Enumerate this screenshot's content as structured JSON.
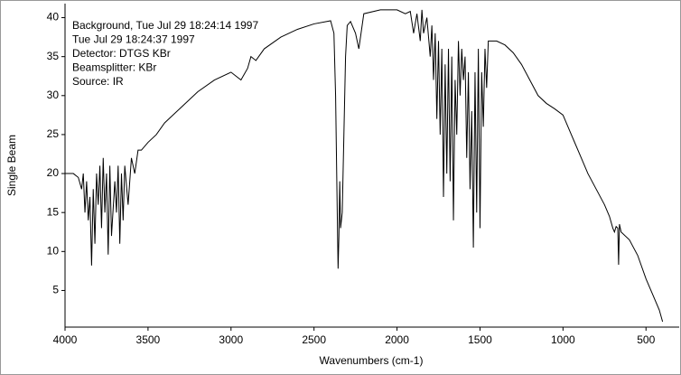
{
  "chart_data": {
    "type": "line",
    "annotations": [
      "Background, Tue Jul 29 18:24:14 1997",
      "Tue Jul 29 18:24:37 1997",
      "Detector:  DTGS KBr",
      "Beamsplitter:  KBr",
      "Source:  IR"
    ],
    "x_label": "Wavenumbers (cm-1)",
    "y_label": "Single Beam",
    "x": [
      4000,
      3950,
      3920,
      3900,
      3890,
      3880,
      3870,
      3860,
      3850,
      3840,
      3830,
      3820,
      3810,
      3800,
      3790,
      3780,
      3770,
      3760,
      3750,
      3740,
      3730,
      3720,
      3700,
      3690,
      3680,
      3670,
      3660,
      3650,
      3640,
      3620,
      3600,
      3580,
      3560,
      3540,
      3500,
      3450,
      3400,
      3300,
      3200,
      3100,
      3000,
      2970,
      2940,
      2900,
      2880,
      2850,
      2800,
      2700,
      2600,
      2500,
      2400,
      2380,
      2370,
      2360,
      2355,
      2350,
      2345,
      2340,
      2330,
      2320,
      2310,
      2300,
      2280,
      2250,
      2230,
      2200,
      2100,
      2000,
      1950,
      1920,
      1900,
      1880,
      1860,
      1850,
      1840,
      1820,
      1800,
      1790,
      1780,
      1770,
      1760,
      1750,
      1740,
      1730,
      1720,
      1710,
      1700,
      1690,
      1680,
      1670,
      1660,
      1650,
      1640,
      1630,
      1620,
      1610,
      1600,
      1590,
      1580,
      1570,
      1560,
      1550,
      1540,
      1530,
      1520,
      1510,
      1500,
      1490,
      1480,
      1470,
      1460,
      1450,
      1400,
      1350,
      1300,
      1250,
      1200,
      1150,
      1100,
      1050,
      1000,
      950,
      900,
      850,
      800,
      750,
      720,
      700,
      690,
      680,
      670,
      665,
      660,
      650,
      600,
      550,
      500,
      450,
      420,
      400
    ],
    "values": [
      20,
      20,
      19.5,
      18,
      20,
      15,
      19,
      14,
      17,
      8.2,
      18,
      11,
      20,
      16,
      21,
      13,
      22,
      15,
      20,
      9.6,
      21,
      12,
      19,
      15,
      21,
      11,
      20,
      14,
      21,
      16,
      22,
      20,
      23,
      23,
      24,
      25,
      26.5,
      28.5,
      30.5,
      32,
      33,
      32.5,
      32,
      33.5,
      35,
      34.5,
      36,
      37.5,
      38.5,
      39.2,
      39.6,
      38,
      30,
      15,
      7.8,
      12,
      19,
      13,
      15,
      25,
      35,
      39,
      39.5,
      38,
      36,
      40.5,
      41,
      41,
      40.5,
      40.8,
      38,
      40.5,
      37,
      41,
      38,
      40,
      35,
      39,
      32,
      38,
      27,
      37,
      25,
      36,
      17,
      34,
      20,
      36,
      19,
      35,
      14,
      32,
      25,
      37,
      30,
      36,
      32,
      35,
      22,
      33,
      18,
      28,
      10.5,
      33,
      15,
      36,
      13,
      33,
      26,
      36,
      31,
      37,
      37,
      36.5,
      35.5,
      34,
      32,
      30,
      29,
      28.3,
      27.5,
      25,
      22.5,
      20,
      18,
      16,
      14.5,
      13,
      12.5,
      13.2,
      13,
      8.3,
      13.5,
      12.5,
      11.5,
      9.5,
      6.5,
      4,
      2.5,
      1
    ],
    "color": "#000000",
    "xlim": [
      4000,
      300
    ],
    "ylim": [
      0.3,
      41.8
    ],
    "xticks": [
      4000,
      3500,
      3000,
      2500,
      2000,
      1500,
      1000,
      500
    ],
    "yticks": [
      5,
      10,
      15,
      20,
      25,
      30,
      35,
      40
    ]
  }
}
